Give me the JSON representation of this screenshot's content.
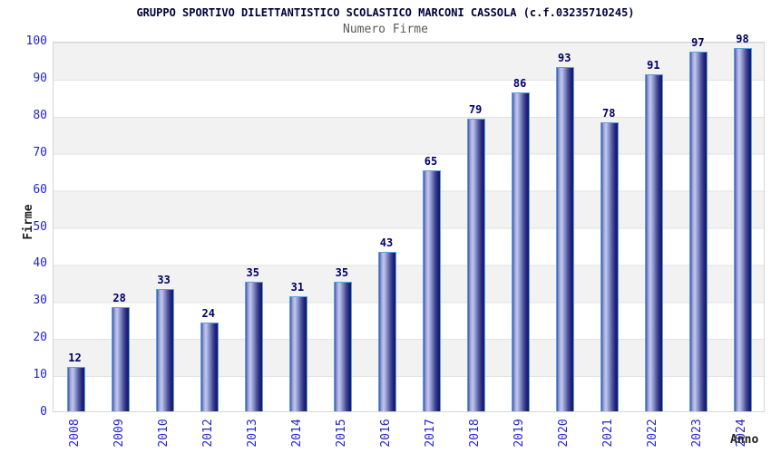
{
  "header": {
    "title": "GRUPPO SPORTIVO DILETTANTISTICO SCOLASTICO MARCONI CASSOLA (c.f.03235710245)",
    "subtitle": "Numero Firme"
  },
  "chart_data": {
    "type": "bar",
    "title": "GRUPPO SPORTIVO DILETTANTISTICO SCOLASTICO MARCONI CASSOLA (c.f.03235710245)",
    "subtitle": "Numero Firme",
    "categories": [
      "2008",
      "2009",
      "2010",
      "2012",
      "2013",
      "2014",
      "2015",
      "2016",
      "2017",
      "2018",
      "2019",
      "2020",
      "2021",
      "2022",
      "2023",
      "2024"
    ],
    "values": [
      12,
      28,
      33,
      24,
      35,
      31,
      35,
      43,
      65,
      79,
      86,
      93,
      78,
      91,
      97,
      98
    ],
    "xlabel": "Anno",
    "ylabel": "Firme",
    "ylim": [
      0,
      100
    ],
    "ytick_step": 10,
    "grid": true,
    "legend_position": "none",
    "colors": {
      "bar_dark": "#15156a",
      "bar_light": "#c2c8ee",
      "bar_border": "#5ca2e0",
      "tick_label": "#2424cc",
      "value_label": "#000066",
      "band_gray": "#f2f2f2",
      "band_white": "#ffffff",
      "grid_line": "#e2e2e2",
      "title": "#00003a",
      "subtitle": "#5a5a5a",
      "axis_title": "#222222"
    }
  }
}
